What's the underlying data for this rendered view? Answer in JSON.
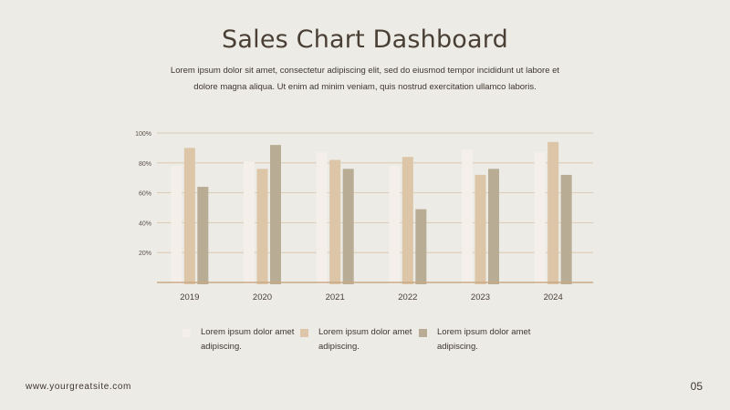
{
  "title": "Sales Chart Dashboard",
  "subtitle": "Lorem ipsum dolor sit amet, consectetur adipiscing elit, sed do eiusmod tempor incididunt ut labore et dolore magna aliqua. Ut enim ad minim veniam, quis nostrud exercitation ullamco laboris.",
  "footer": {
    "site": "www.yourgreatsite.com",
    "page": "05"
  },
  "colors": {
    "background": "#ecebe6",
    "series1": "#f4efe9",
    "series2": "#dcc6a7",
    "series3": "#b9ac94",
    "gridline": "#d8c3a5",
    "baseline": "#c9a985"
  },
  "chart_data": {
    "type": "bar",
    "categories": [
      "2019",
      "2020",
      "2021",
      "2022",
      "2023",
      "2024"
    ],
    "series": [
      {
        "label": "Lorem ipsum dolor amet adipiscing.",
        "values": [
          78,
          81,
          87,
          78,
          89,
          87
        ]
      },
      {
        "label": "Lorem ipsum dolor amet adipiscing.",
        "values": [
          90,
          76,
          82,
          84,
          72,
          94
        ]
      },
      {
        "label": "Lorem ipsum dolor amet adipiscing.",
        "values": [
          64,
          92,
          76,
          49,
          76,
          72
        ]
      }
    ],
    "yticks": [
      "20%",
      "40%",
      "60%",
      "80%",
      "100%"
    ],
    "ylim": [
      0,
      100
    ],
    "grid": true,
    "legend_position": "bottom"
  }
}
